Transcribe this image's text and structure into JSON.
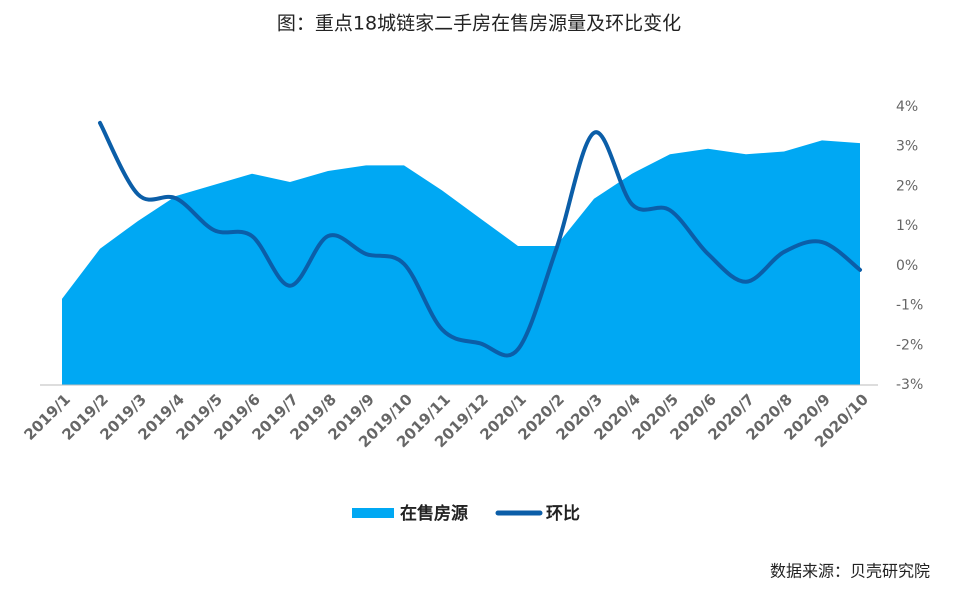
{
  "chart_data": {
    "type": "area-line",
    "title": "图：重点18城链家二手房在售房源量及环比变化",
    "source": "数据来源：贝壳研究院",
    "categories": [
      "2019/1",
      "2019/2",
      "2019/3",
      "2019/4",
      "2019/5",
      "2019/6",
      "2019/7",
      "2019/8",
      "2019/9",
      "2019/10",
      "2019/11",
      "2019/12",
      "2020/1",
      "2020/2",
      "2020/3",
      "2020/4",
      "2020/5",
      "2020/6",
      "2020/7",
      "2020/8",
      "2020/9",
      "2020/10"
    ],
    "series": [
      {
        "name": "在售房源",
        "type": "area",
        "color": "#00a8f3",
        "axis": "y",
        "values": [
          31,
          49,
          59,
          68,
          72,
          76,
          73,
          77,
          79,
          79,
          70,
          60,
          50,
          50,
          67,
          76,
          83,
          85,
          83,
          84,
          88,
          87
        ]
      },
      {
        "name": "环比",
        "type": "line",
        "color": "#0b5ea8",
        "axis": "y2",
        "values": [
          null,
          3.6,
          1.8,
          1.7,
          0.9,
          0.75,
          -0.5,
          0.75,
          0.3,
          0.05,
          -1.6,
          -1.95,
          -2.1,
          0.4,
          3.35,
          1.55,
          1.4,
          0.3,
          -0.4,
          0.35,
          0.6,
          -0.1
        ]
      }
    ],
    "ylim": [
      0,
      100
    ],
    "y2lim": [
      -3,
      4
    ],
    "y2ticks": [
      {
        "value": 4,
        "label": "4%"
      },
      {
        "value": 3,
        "label": "3%"
      },
      {
        "value": 2,
        "label": "2%"
      },
      {
        "value": 1,
        "label": "1%"
      },
      {
        "value": 0,
        "label": "0%"
      },
      {
        "value": -1,
        "label": "-1%"
      },
      {
        "value": -2,
        "label": "-2%"
      },
      {
        "value": -3,
        "label": "-3%"
      }
    ],
    "legend": "bottom"
  }
}
